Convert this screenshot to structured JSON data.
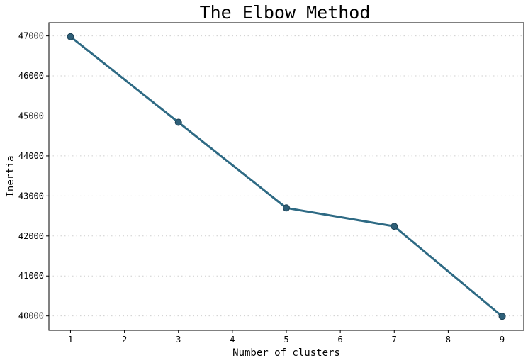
{
  "chart_data": {
    "type": "line",
    "title": "The Elbow Method",
    "xlabel": "Number of clusters",
    "ylabel": "Inertia",
    "x": [
      1,
      3,
      5,
      7,
      9
    ],
    "y": [
      46980,
      44840,
      42700,
      42240,
      39990
    ],
    "xticks": [
      1,
      2,
      3,
      4,
      5,
      6,
      7,
      8,
      9
    ],
    "yticks": [
      40000,
      41000,
      42000,
      43000,
      44000,
      45000,
      46000,
      47000
    ],
    "xlim": [
      0.6,
      9.4
    ],
    "ylim": [
      39640,
      47330
    ],
    "grid": "horizontal-dotted",
    "line_color": "#2e6a84",
    "marker_color": "#2e5f78",
    "marker_edge_color": "#1d3f52"
  }
}
